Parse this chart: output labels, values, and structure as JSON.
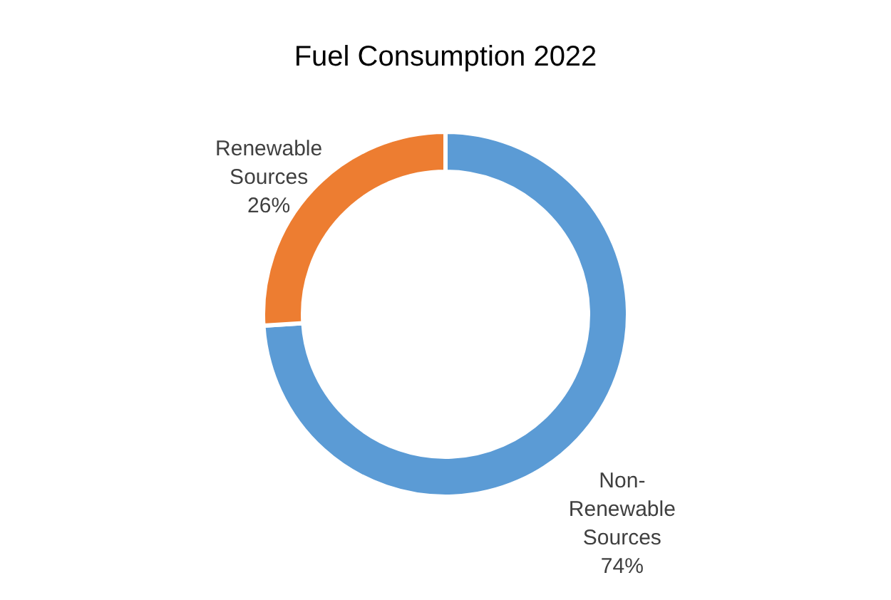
{
  "chart_data": {
    "type": "donut",
    "title": "Fuel Consumption 2022",
    "categories": [
      "Non-Renewable Sources",
      "Renewable Sources"
    ],
    "values": [
      74,
      26
    ],
    "colors": [
      "#5b9bd5",
      "#ed7d31"
    ],
    "value_labels": [
      "74%",
      "26%"
    ],
    "legend": false
  }
}
